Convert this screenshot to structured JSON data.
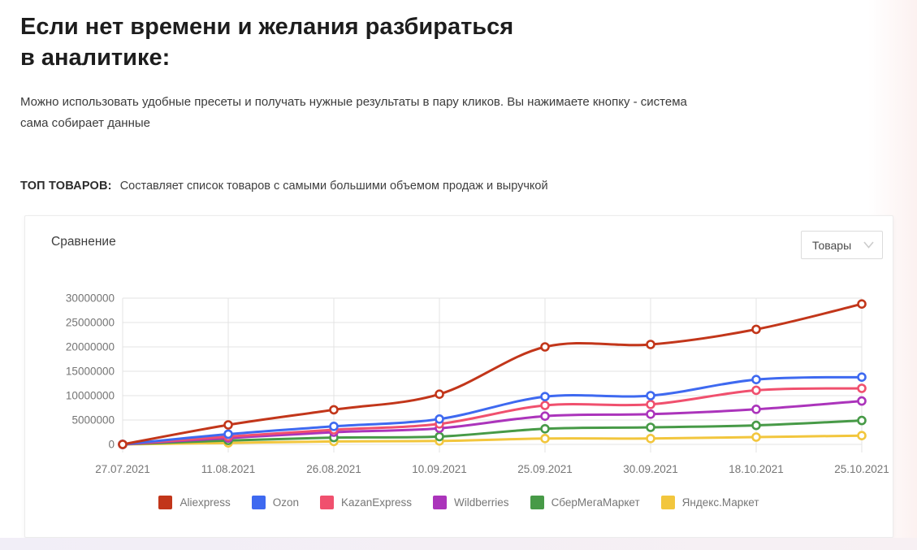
{
  "page": {
    "title_line1": "Если нет времени и желания разбираться",
    "title_line2": "в аналитике:",
    "subtitle": "Можно использовать удобные пресеты и получать нужные результаты в пару кликов. Вы нажимаете кнопку - система сама собирает данные",
    "preset_label": "ТОП ТОВАРОВ:",
    "preset_description": "Составляет список товаров с самыми большими объемом продаж и выручкой"
  },
  "card": {
    "title": "Сравнение",
    "dropdown": {
      "value": "Товары"
    }
  },
  "chart_data": {
    "type": "line",
    "title": "Сравнение",
    "curve": "smooth",
    "point_style": "open-circle",
    "grid": true,
    "legend_position": "bottom",
    "categories": [
      "27.07.2021",
      "11.08.2021",
      "26.08.2021",
      "10.09.2021",
      "25.09.2021",
      "30.09.2021",
      "18.10.2021",
      "25.10.2021"
    ],
    "yticks": [
      0,
      5000000,
      10000000,
      15000000,
      20000000,
      25000000,
      30000000
    ],
    "ylim": [
      0,
      30000000
    ],
    "series": [
      {
        "name": "Aliexpress",
        "color": "#c2361a",
        "values": [
          0,
          4000000,
          7100000,
          10300000,
          20000000,
          20500000,
          23600000,
          28800000
        ]
      },
      {
        "name": "Ozon",
        "color": "#3e69f0",
        "values": [
          0,
          2100000,
          3700000,
          5200000,
          9800000,
          10000000,
          13300000,
          13800000
        ]
      },
      {
        "name": "KazanExpress",
        "color": "#f0506e",
        "values": [
          0,
          1600000,
          3000000,
          4200000,
          8000000,
          8200000,
          11100000,
          11500000
        ]
      },
      {
        "name": "Wildberries",
        "color": "#ab34bb",
        "values": [
          0,
          1300000,
          2500000,
          3300000,
          5800000,
          6200000,
          7200000,
          8900000
        ]
      },
      {
        "name": "СберМегаМаркет",
        "color": "#479a47",
        "values": [
          0,
          800000,
          1400000,
          1600000,
          3200000,
          3500000,
          3900000,
          4900000
        ]
      },
      {
        "name": "Яндекс.Маркет",
        "color": "#f2c63d",
        "values": [
          0,
          300000,
          600000,
          700000,
          1200000,
          1200000,
          1500000,
          1800000
        ]
      }
    ]
  },
  "colors": {
    "grid": "#e3e3e3",
    "axis_text": "#757575",
    "card_border": "#ececec"
  }
}
